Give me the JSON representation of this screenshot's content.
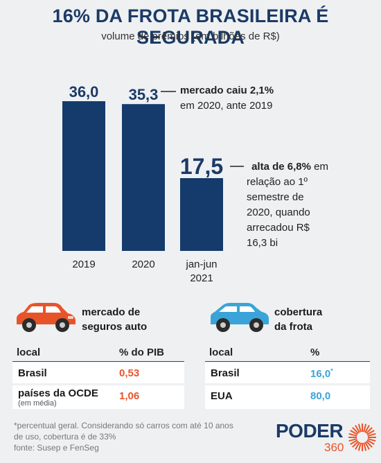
{
  "header": {
    "title": "16% DA FROTA BRASILEIRA É SEGURADA",
    "subtitle": "volume de prêmios (em bilhões de R$)"
  },
  "chart_data": {
    "type": "bar",
    "categories": [
      "2019",
      "2020",
      "jan-jun 2021"
    ],
    "values": [
      36.0,
      35.3,
      17.5
    ],
    "value_labels": [
      "36,0",
      "35,3",
      "17,5"
    ],
    "bar_color": "#143b6b"
  },
  "annotations": {
    "a1_bold": "mercado caiu 2,1%",
    "a1_rest": "em 2020, ante 2019",
    "a2_bold": "alta de 6,8%",
    "a2_l1": "em",
    "a2_l2": "relação ao 1º",
    "a2_l3": "semestre de",
    "a2_l4": "2020, quando",
    "a2_l5": "arrecadou R$",
    "a2_l6": "16,3 bi"
  },
  "left_section": {
    "title_l1": "mercado de",
    "title_l2": "seguros auto",
    "icon": "orange-car-icon",
    "col1": "local",
    "col2": "% do PIB",
    "rows": [
      {
        "local": "Brasil",
        "value": "0,53",
        "sub": ""
      },
      {
        "local": "países da OCDE",
        "value": "1,06",
        "sub": "(em média)"
      }
    ]
  },
  "right_section": {
    "title_l1": "cobertura",
    "title_l2": "da frota",
    "icon": "blue-car-icon",
    "col1": "local",
    "col2": "%",
    "rows": [
      {
        "local": "Brasil",
        "value": "16,0",
        "mark": "*"
      },
      {
        "local": "EUA",
        "value": "80,0",
        "mark": ""
      }
    ]
  },
  "footer": {
    "l1": "*percentual geral. Considerando só carros com até 10 anos",
    "l2": "de uso, cobertura é de 33%",
    "l3": "fonte: Susep e FenSeg"
  },
  "logo": {
    "name": "PODER",
    "number": "360"
  },
  "colors": {
    "navy": "#1b3a66",
    "orange": "#e8542a",
    "blue": "#3aa4d8"
  }
}
